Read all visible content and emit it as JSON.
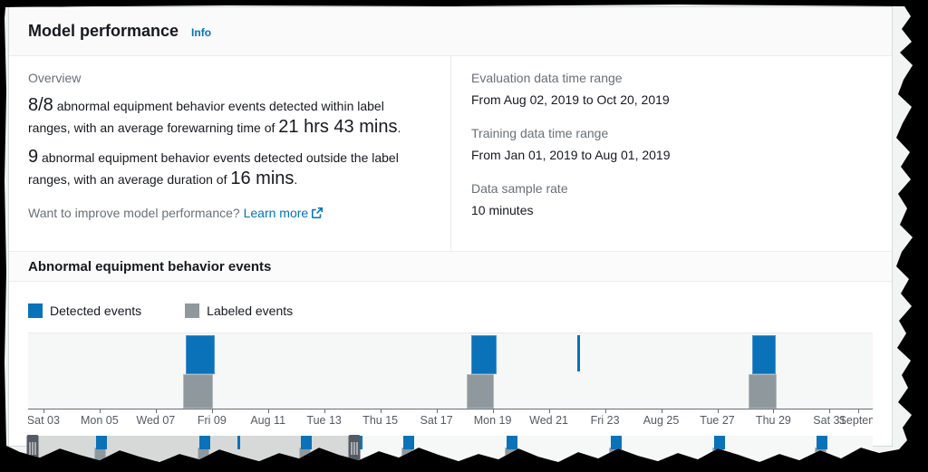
{
  "header": {
    "title": "Model performance",
    "info_label": "Info"
  },
  "overview": {
    "section_label": "Overview",
    "line1": {
      "big1": "8/8",
      "mid": " abnormal equipment behavior events detected within label ranges, with an average forewarning time of ",
      "big2": "21 hrs 43 mins",
      "end": "."
    },
    "line2": {
      "big1": "9",
      "mid": " abnormal equipment behavior events detected outside the label ranges, with an average duration of ",
      "big2": "16 mins",
      "end": "."
    },
    "improve": {
      "prefix": "Want to improve model performance? ",
      "link": "Learn more"
    }
  },
  "details": [
    {
      "label": "Evaluation data time range",
      "value": "From Aug 02, 2019 to Oct 20, 2019"
    },
    {
      "label": "Training data time range",
      "value": "From Jan 01, 2019 to Aug 01, 2019"
    },
    {
      "label": "Data sample rate",
      "value": "10 minutes"
    }
  ],
  "events_section": {
    "title": "Abnormal equipment behavior events",
    "legend": [
      {
        "label": "Detected events",
        "color": "#0a72b8"
      },
      {
        "label": "Labeled events",
        "color": "#8e989d"
      }
    ]
  },
  "chart_data": {
    "type": "bar",
    "subtype": "event-timeline",
    "title": "Abnormal equipment behavior events",
    "legend": [
      "Detected events",
      "Labeled events"
    ],
    "colors": {
      "detected": "#0a72b8",
      "labeled": "#8e989d"
    },
    "main_chart": {
      "x_range": [
        "Aug 03, 2019",
        "Sep 01, 2019"
      ],
      "ticks": [
        {
          "label": "Sat 03",
          "x": 1.81
        },
        {
          "label": "Mon 05",
          "x": 8.46
        },
        {
          "label": "Wed 07",
          "x": 15.11
        },
        {
          "label": "Fri 09",
          "x": 21.76
        },
        {
          "label": "Aug 11",
          "x": 28.4
        },
        {
          "label": "Tue 13",
          "x": 35.05
        },
        {
          "label": "Thu 15",
          "x": 41.7
        },
        {
          "label": "Sat 17",
          "x": 48.35
        },
        {
          "label": "Mon 19",
          "x": 55.0
        },
        {
          "label": "Wed 21",
          "x": 61.65
        },
        {
          "label": "Fri 23",
          "x": 68.3
        },
        {
          "label": "Aug 25",
          "x": 74.95
        },
        {
          "label": "Tue 27",
          "x": 81.6
        },
        {
          "label": "Thu 29",
          "x": 88.24
        },
        {
          "label": "Sat 31",
          "x": 94.89
        },
        {
          "label": "Septem",
          "x": 98.3
        }
      ],
      "events": [
        {
          "date": "Aug 08, 2019",
          "labeled": {
            "x": 18.4,
            "w": 3.51
          },
          "detected": {
            "x": 18.72,
            "w": 3.4
          }
        },
        {
          "date": "Aug 18, 2019",
          "labeled": {
            "x": 51.9,
            "w": 3.3
          },
          "detected": {
            "x": 52.45,
            "w": 2.98
          }
        },
        {
          "date": "Aug 22, 2019",
          "labeled": null,
          "detected": {
            "x": 65.0,
            "w": 0,
            "thin": true
          }
        },
        {
          "date": "Aug 28, 2019",
          "labeled": {
            "x": 85.3,
            "w": 3.3
          },
          "detected": {
            "x": 85.7,
            "w": 2.87
          }
        }
      ]
    },
    "brush": {
      "x_range": [
        "Aug 02, 2019",
        "Oct 20, 2019"
      ],
      "selection": {
        "start_pct": 0,
        "end_pct": 39.3
      },
      "events": [
        {
          "x": 8.09,
          "type": "both"
        },
        {
          "x": 20.32,
          "type": "both"
        },
        {
          "x": 24.79,
          "type": "detected-thin"
        },
        {
          "x": 32.34,
          "type": "both"
        },
        {
          "x": 39.26,
          "type": "detected-thin"
        },
        {
          "x": 44.47,
          "type": "both"
        },
        {
          "x": 56.7,
          "type": "both"
        },
        {
          "x": 68.94,
          "type": "both"
        },
        {
          "x": 81.17,
          "type": "both"
        },
        {
          "x": 93.3,
          "type": "both"
        }
      ],
      "handles": [
        {
          "x": 0.53
        },
        {
          "x": 38.6
        }
      ]
    }
  }
}
